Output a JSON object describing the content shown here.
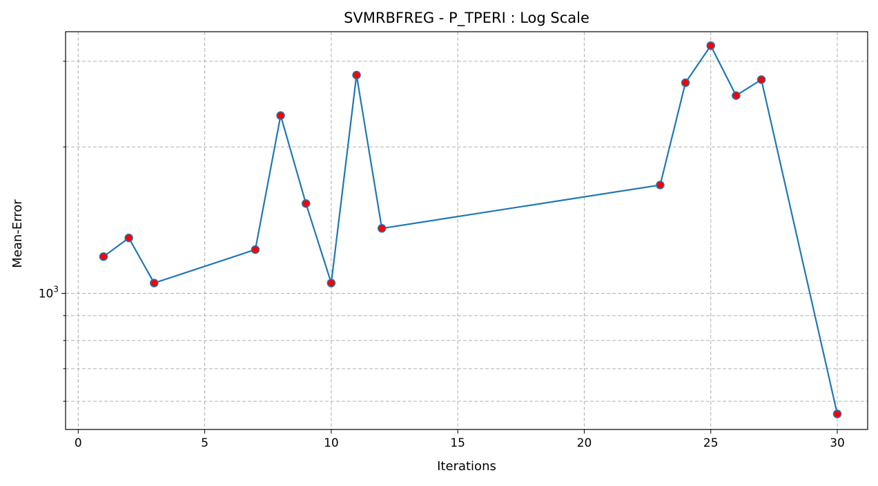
{
  "chart_data": {
    "type": "line",
    "title": "SVMRBFREG - P_TPERI : Log Scale",
    "xlabel": "Iterations",
    "ylabel": "Mean-Error",
    "y_scale": "log",
    "xlim": [
      -0.5,
      31.2
    ],
    "ylim": [
      525,
      3450
    ],
    "x_ticks": [
      0,
      5,
      10,
      15,
      20,
      25,
      30
    ],
    "y_major_ticks": [
      {
        "value": 1000,
        "base": "10",
        "exponent": "3"
      }
    ],
    "y_minor_ticks": [
      600,
      700,
      800,
      900,
      2000,
      3000
    ],
    "grid": true,
    "series": [
      {
        "x": [
          1,
          2,
          3,
          7,
          8,
          9,
          10,
          11,
          12,
          23,
          24,
          25,
          26,
          27,
          30
        ],
        "y": [
          1190,
          1300,
          1050,
          1230,
          2320,
          1530,
          1050,
          2810,
          1360,
          1670,
          2710,
          3230,
          2550,
          2750,
          565
        ],
        "line_color": "#1f77b4",
        "marker_face_color": "#ff0000",
        "marker_edge_color": "#1f77b4"
      }
    ]
  }
}
